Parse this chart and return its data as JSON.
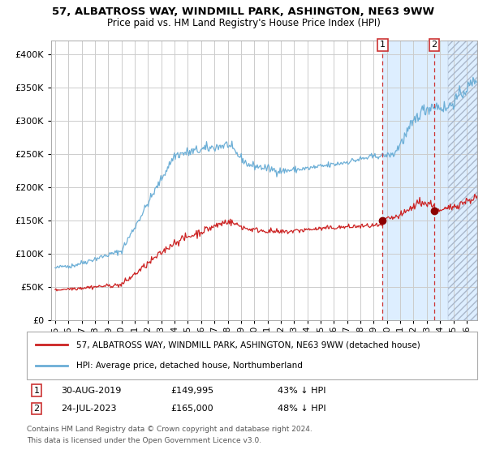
{
  "title": "57, ALBATROSS WAY, WINDMILL PARK, ASHINGTON, NE63 9WW",
  "subtitle": "Price paid vs. HM Land Registry's House Price Index (HPI)",
  "ylim": [
    0,
    420000
  ],
  "yticks": [
    0,
    50000,
    100000,
    150000,
    200000,
    250000,
    300000,
    350000,
    400000
  ],
  "xlim_start": 1994.7,
  "xlim_end": 2026.8,
  "hpi_color": "#6baed6",
  "price_color": "#cc2222",
  "marker_color": "#8b0000",
  "vline_color": "#cc3333",
  "shade_color": "#ddeeff",
  "grid_color": "#cccccc",
  "bg_color": "#ffffff",
  "transaction1_date": 2019.66,
  "transaction1_price": 149995,
  "transaction1_date_str": "30-AUG-2019",
  "transaction1_pct": "43% ↓ HPI",
  "transaction2_date": 2023.56,
  "transaction2_price": 165000,
  "transaction2_date_str": "24-JUL-2023",
  "transaction2_pct": "48% ↓ HPI",
  "legend_label1": "57, ALBATROSS WAY, WINDMILL PARK, ASHINGTON, NE63 9WW (detached house)",
  "legend_label2": "HPI: Average price, detached house, Northumberland",
  "footer1": "Contains HM Land Registry data © Crown copyright and database right 2024.",
  "footer2": "This data is licensed under the Open Government Licence v3.0.",
  "hatch_region_start": 2024.58
}
